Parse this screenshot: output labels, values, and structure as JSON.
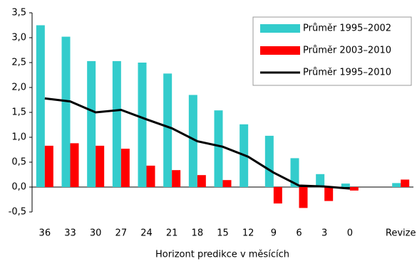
{
  "chart_data": {
    "type": "bar-line",
    "x_label": "Horizont predikce v měsících",
    "categories": [
      "36",
      "33",
      "30",
      "27",
      "24",
      "21",
      "18",
      "15",
      "12",
      "9",
      "6",
      "3",
      "0",
      null,
      "Revize"
    ],
    "series": [
      {
        "name": "Průměr 1995–2002",
        "type": "bar",
        "color": "#33cccc",
        "values": [
          3.25,
          3.02,
          2.53,
          2.53,
          2.5,
          2.28,
          1.85,
          1.54,
          1.26,
          1.03,
          0.58,
          0.26,
          0.07,
          null,
          0.08
        ]
      },
      {
        "name": "Průměr 2003–2010",
        "type": "bar",
        "color": "#ff0000",
        "values": [
          0.83,
          0.88,
          0.83,
          0.77,
          0.43,
          0.34,
          0.24,
          0.14,
          0,
          -0.33,
          -0.42,
          -0.28,
          -0.07,
          null,
          0.15
        ]
      },
      {
        "name": "Průměr 1995–2010",
        "type": "line",
        "color": "#000000",
        "values": [
          1.78,
          1.72,
          1.5,
          1.55,
          1.36,
          1.18,
          0.92,
          0.81,
          0.61,
          0.29,
          0.03,
          0.01,
          -0.03,
          null,
          null
        ]
      }
    ],
    "ylim": [
      -0.5,
      3.5
    ],
    "yticks": [
      {
        "value": -0.5,
        "label": "-0,5"
      },
      {
        "value": 0,
        "label": "0,0"
      },
      {
        "value": 0.5,
        "label": "0,5"
      },
      {
        "value": 1,
        "label": "1,0"
      },
      {
        "value": 1.5,
        "label": "1,5"
      },
      {
        "value": 2,
        "label": "2,0"
      },
      {
        "value": 2.5,
        "label": "2,5"
      },
      {
        "value": 3,
        "label": "3,0"
      },
      {
        "value": 3.5,
        "label": "3,5"
      }
    ],
    "legend": "top-right"
  }
}
